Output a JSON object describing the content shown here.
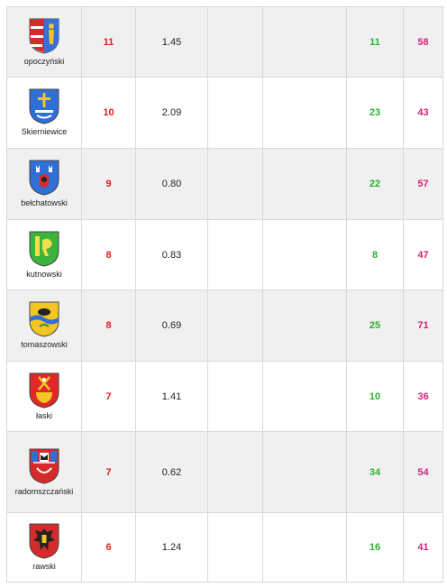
{
  "rows": [
    {
      "name": "opoczyński",
      "crest": "opoczynski-crest-icon",
      "rank": "11",
      "value": "1.45",
      "col4": "",
      "col5": "",
      "green": "11",
      "pink": "58"
    },
    {
      "name": "Skierniewice",
      "crest": "skierniewice-crest-icon",
      "rank": "10",
      "value": "2.09",
      "col4": "",
      "col5": "",
      "green": "23",
      "pink": "43"
    },
    {
      "name": "bełchatowski",
      "crest": "belchatowski-crest-icon",
      "rank": "9",
      "value": "0.80",
      "col4": "",
      "col5": "",
      "green": "22",
      "pink": "57"
    },
    {
      "name": "kutnowski",
      "crest": "kutnowski-crest-icon",
      "rank": "8",
      "value": "0.83",
      "col4": "",
      "col5": "",
      "green": "8",
      "pink": "47"
    },
    {
      "name": "tomaszowski",
      "crest": "tomaszowski-crest-icon",
      "rank": "8",
      "value": "0.69",
      "col4": "",
      "col5": "",
      "green": "25",
      "pink": "71"
    },
    {
      "name": "łaski",
      "crest": "laski-crest-icon",
      "rank": "7",
      "value": "1.41",
      "col4": "",
      "col5": "",
      "green": "10",
      "pink": "36"
    },
    {
      "name": "radomszczański",
      "crest": "radomszczanski-crest-icon",
      "rank": "7",
      "value": "0.62",
      "col4": "",
      "col5": "",
      "green": "34",
      "pink": "54"
    },
    {
      "name": "rawski",
      "crest": "rawski-crest-icon",
      "rank": "6",
      "value": "1.24",
      "col4": "",
      "col5": "",
      "green": "16",
      "pink": "41"
    }
  ],
  "colors": {
    "rank": "#e02020",
    "green": "#2db02d",
    "pink": "#d6247a",
    "alt_row": "#f0f0f0",
    "border": "#d9d9d9"
  }
}
